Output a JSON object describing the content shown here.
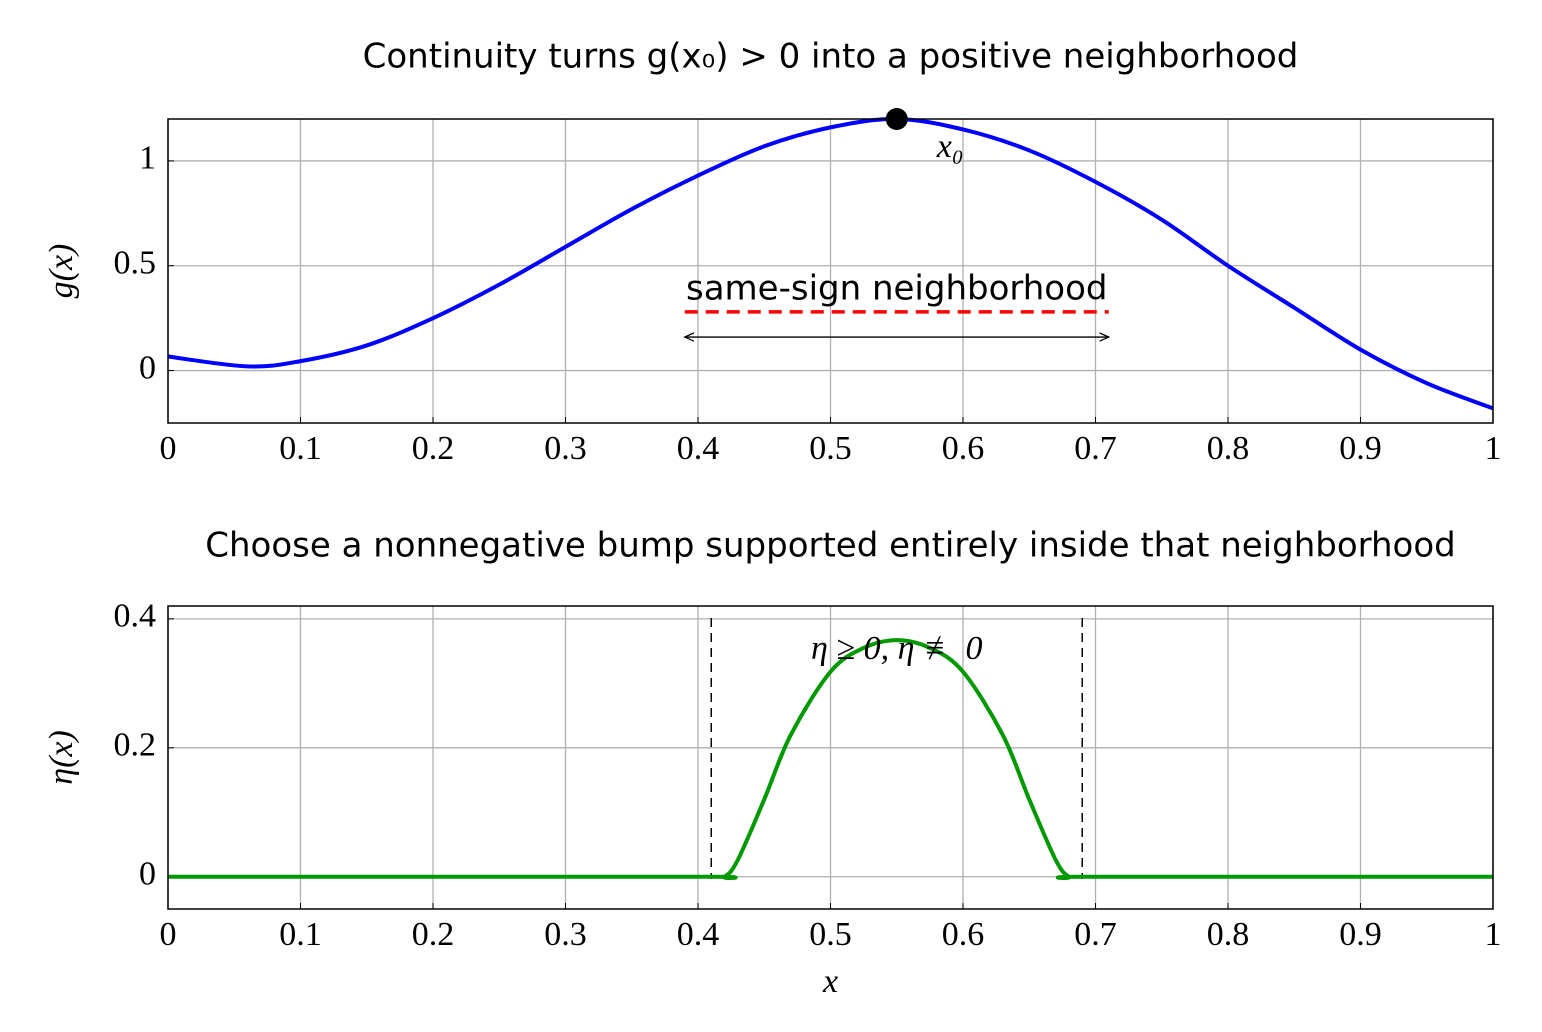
{
  "chart_data": [
    {
      "type": "line",
      "title": "Continuity turns g(x₀) > 0 into a positive neighborhood",
      "ylabel": "g(x)",
      "x": [
        0,
        0.06,
        0.1,
        0.15,
        0.2,
        0.25,
        0.3,
        0.35,
        0.4,
        0.45,
        0.5,
        0.55,
        0.6,
        0.65,
        0.7,
        0.75,
        0.8,
        0.85,
        0.9,
        0.95,
        1
      ],
      "series": [
        {
          "color": "#0000ff",
          "values": [
            0.067,
            0.02,
            0.045,
            0.12,
            0.25,
            0.41,
            0.59,
            0.77,
            0.93,
            1.07,
            1.16,
            1.2,
            1.15,
            1.05,
            0.9,
            0.72,
            0.5,
            0.3,
            0.1,
            -0.06,
            -0.18
          ]
        }
      ],
      "xlim": [
        0,
        1
      ],
      "xticks": [
        0,
        0.1,
        0.2,
        0.3,
        0.4,
        0.5,
        0.6,
        0.7,
        0.8,
        0.9,
        1
      ],
      "ylim": [
        -0.25,
        1.2
      ],
      "yticks": [
        0,
        0.5,
        1
      ],
      "grid": true,
      "point": {
        "x": 0.55,
        "y": 1.2,
        "label": "x₀"
      },
      "interval": {
        "label": "same-sign neighborhood",
        "x": [
          0.39,
          0.71
        ],
        "y": 0.28,
        "arrow_y": 0.16,
        "color": "#ff0000"
      }
    },
    {
      "type": "line",
      "title": "Choose a nonnegative bump supported entirely inside that neighborhood",
      "ylabel": "η(x)",
      "xlabel": "x",
      "x": [
        0,
        0.2,
        0.41,
        0.42,
        0.43,
        0.45,
        0.47,
        0.5,
        0.525,
        0.55,
        0.575,
        0.6,
        0.63,
        0.65,
        0.67,
        0.68,
        0.69,
        0.9,
        1
      ],
      "series": [
        {
          "color": "#009900",
          "values": [
            0,
            0,
            0,
            0,
            0.026,
            0.12,
            0.22,
            0.318,
            0.355,
            0.367,
            0.355,
            0.318,
            0.22,
            0.12,
            0.026,
            0,
            0,
            0,
            0
          ]
        }
      ],
      "xlim": [
        0,
        1
      ],
      "xticks": [
        0,
        0.1,
        0.2,
        0.3,
        0.4,
        0.5,
        0.6,
        0.7,
        0.8,
        0.9,
        1
      ],
      "ylim": [
        -0.05,
        0.42
      ],
      "yticks": [
        0,
        0.2,
        0.4
      ],
      "grid": true,
      "vlines": [
        0.41,
        0.69
      ],
      "annotation": {
        "text": "η ≥ 0, η ≢ 0",
        "x": 0.55,
        "y": 0.35
      }
    }
  ]
}
